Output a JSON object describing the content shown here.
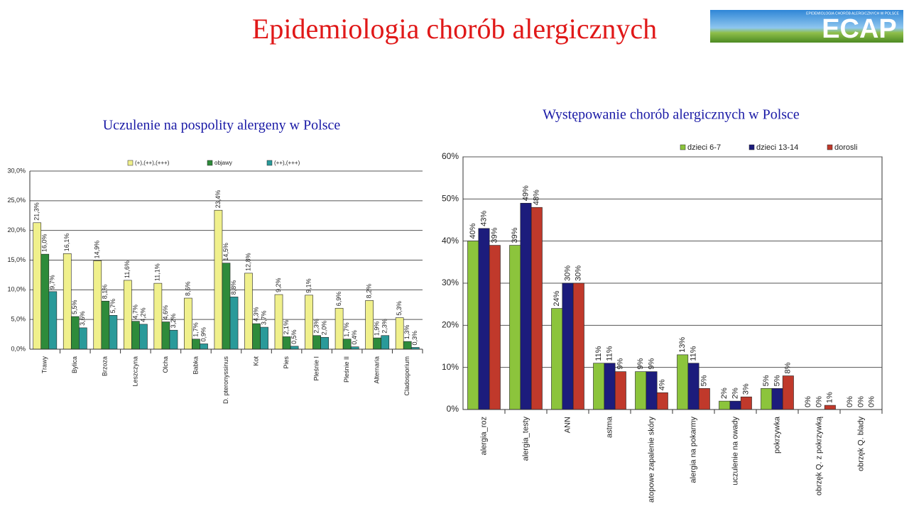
{
  "slide": {
    "title": "Epidemiologia chorób alergicznych",
    "logo_caption": "EPIDEMIOLOGIA CHORÓB ALERGICZNYCH W POLSCE",
    "logo_text": "ECAP"
  },
  "chart_data": [
    {
      "type": "bar",
      "title": "Uczulenie na pospolity alergeny w Polsce",
      "categories": [
        "Trawy",
        "Bylica",
        "Brzoza",
        "Leszczyna",
        "Olcha",
        "Babka",
        "D. pteronyssinus",
        "Kot",
        "Pies",
        "Pleśnie I",
        "Pleśnie II",
        "Alternaria",
        "Cladosporium"
      ],
      "series": [
        {
          "name": "(+),(++),(+++)",
          "color": "#f0f08c",
          "values": [
            21.3,
            16.1,
            14.9,
            11.6,
            11.1,
            8.6,
            23.4,
            12.8,
            9.2,
            9.1,
            6.9,
            8.2,
            5.3
          ],
          "value_labels": [
            "21,3%",
            "16,1%",
            "14,9%",
            "11,6%",
            "11,1%",
            "8,6%",
            "23,4%",
            "12,8%",
            "9,2%",
            "9,1%",
            "6,9%",
            "8,2%",
            "5,3%"
          ]
        },
        {
          "name": "objawy",
          "color": "#2e8b3a",
          "values": [
            16.0,
            5.5,
            8.1,
            4.7,
            4.6,
            1.7,
            14.5,
            4.3,
            2.1,
            2.3,
            1.7,
            1.9,
            1.3
          ],
          "value_labels": [
            "16,0%",
            "5,5%",
            "8,1%",
            "4,7%",
            "4,6%",
            "1,7%",
            "14,5%",
            "4,3%",
            "2,1%",
            "2,3%",
            "1,7%",
            "1,9%",
            "1,3%"
          ]
        },
        {
          "name": "(++),(+++)",
          "color": "#2a9a9a",
          "values": [
            9.7,
            3.6,
            5.7,
            4.2,
            3.2,
            0.9,
            8.8,
            3.7,
            0.5,
            2.0,
            0.4,
            2.3,
            0.3
          ],
          "value_labels": [
            "9,7%",
            "3,6%",
            "5,7%",
            "4,2%",
            "3,2%",
            "0,9%",
            "8,8%",
            "3,7%",
            "0,5%",
            "2,0%",
            "0,4%",
            "2,3%",
            "0,3%"
          ]
        }
      ],
      "ylim": [
        0,
        30
      ],
      "yticks": [
        {
          "value": 0,
          "label": "0,0%"
        },
        {
          "value": 5,
          "label": "5,0%"
        },
        {
          "value": 10,
          "label": "10,0%"
        },
        {
          "value": 15,
          "label": "15,0%"
        },
        {
          "value": 20,
          "label": "20,0%"
        },
        {
          "value": 25,
          "label": "25,0%"
        },
        {
          "value": 30,
          "label": "30,0%"
        }
      ],
      "grid": true,
      "legend": "top"
    },
    {
      "type": "bar",
      "title": "Występowanie chorób alergicznych w Polsce",
      "categories": [
        "alergia_roz",
        "alergia_testy",
        "ANN",
        "astma",
        "atopowe zapalenie skóry",
        "alergia na pokarmy",
        "uczulenie na owady",
        "pokrzywka",
        "obrzęk Q. z pokrzywką",
        "obrzęk Q. blady"
      ],
      "series": [
        {
          "name": "dzieci 6-7",
          "color": "#8cc43c",
          "values": [
            40,
            39,
            24,
            11,
            9,
            13,
            2,
            5,
            0,
            0
          ],
          "value_labels": [
            "40%",
            "39%",
            "24%",
            "11%",
            "9%",
            "13%",
            "2%",
            "5%",
            "0%",
            "0%"
          ]
        },
        {
          "name": "dzieci 13-14",
          "color": "#1c1c7c",
          "values": [
            43,
            49,
            30,
            11,
            9,
            11,
            2,
            5,
            0,
            0
          ],
          "value_labels": [
            "43%",
            "49%",
            "30%",
            "11%",
            "9%",
            "11%",
            "2%",
            "5%",
            "0%",
            "0%"
          ]
        },
        {
          "name": "dorosli",
          "color": "#c0392b",
          "values": [
            39,
            48,
            30,
            9,
            4,
            5,
            3,
            8,
            1,
            0
          ],
          "value_labels": [
            "39%",
            "48%",
            "30%",
            "9%",
            "4%",
            "5%",
            "3%",
            "8%",
            "1%",
            "0%"
          ]
        }
      ],
      "ylim": [
        0,
        60
      ],
      "yticks": [
        {
          "value": 0,
          "label": "0%"
        },
        {
          "value": 10,
          "label": "10%"
        },
        {
          "value": 20,
          "label": "20%"
        },
        {
          "value": 30,
          "label": "30%"
        },
        {
          "value": 40,
          "label": "40%"
        },
        {
          "value": 50,
          "label": "50%"
        },
        {
          "value": 60,
          "label": "60%"
        }
      ],
      "grid": true,
      "legend": "top-right"
    }
  ]
}
